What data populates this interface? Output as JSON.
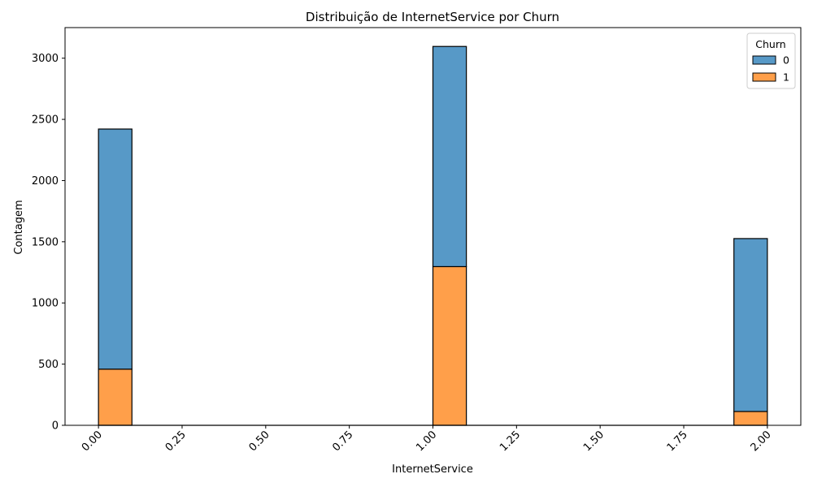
{
  "chart_data": {
    "type": "bar",
    "stacked": true,
    "title": "Distribuição de InternetService por Churn",
    "xlabel": "InternetService",
    "ylabel": "Contagem",
    "xlim": [
      -0.1,
      2.1
    ],
    "ylim": [
      0,
      3250
    ],
    "x_ticks": [
      0.0,
      0.25,
      0.5,
      0.75,
      1.0,
      1.25,
      1.5,
      1.75,
      2.0
    ],
    "x_tick_labels": [
      "0.00",
      "0.25",
      "0.50",
      "0.75",
      "1.00",
      "1.25",
      "1.50",
      "1.75",
      "2.00"
    ],
    "y_ticks": [
      0,
      500,
      1000,
      1500,
      2000,
      2500,
      3000
    ],
    "y_tick_labels": [
      "0",
      "500",
      "1000",
      "1500",
      "2000",
      "2500",
      "3000"
    ],
    "bin_width": 0.1,
    "bin_starts": [
      0.0,
      1.0,
      1.9
    ],
    "series": [
      {
        "name": "1",
        "color": "#ff9f4a",
        "values": [
          459,
          1297,
          113
        ]
      },
      {
        "name": "0",
        "color": "#5799c7",
        "values": [
          1962,
          1799,
          1413
        ]
      }
    ],
    "legend": {
      "title": "Churn",
      "placement": "top-right",
      "entries": [
        {
          "label": "0",
          "color": "#5799c7"
        },
        {
          "label": "1",
          "color": "#ff9f4a"
        }
      ]
    },
    "grid": false
  }
}
